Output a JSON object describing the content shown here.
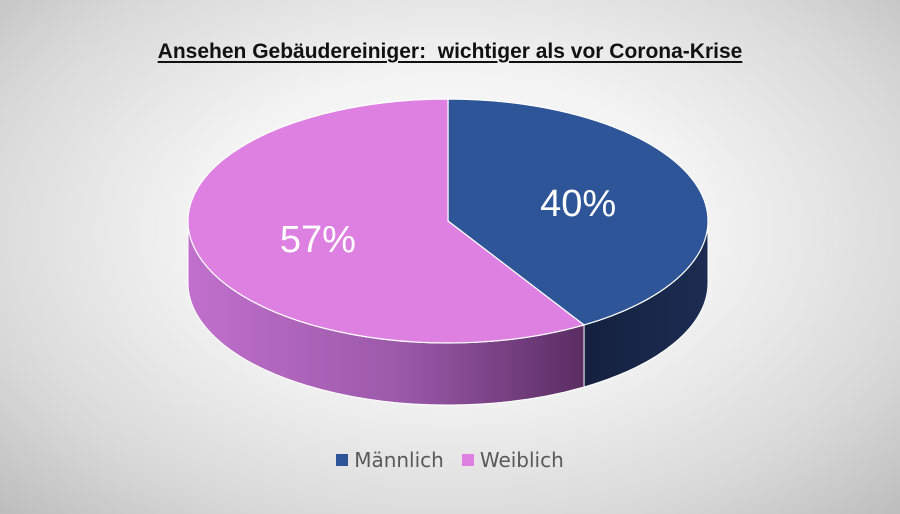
{
  "chart_data": {
    "type": "pie",
    "style": "3d",
    "title": "Ansehen Gebäudereiniger:  wichtiger als vor Corona-Krise",
    "slices": [
      {
        "name": "Männlich",
        "value": 40,
        "label": "40%",
        "color": "#2e5597",
        "side_color": "#15244a"
      },
      {
        "name": "Weiblich",
        "value": 57,
        "label": "57%",
        "color": "#dd80e2",
        "side_color": "#a85bb3"
      }
    ],
    "legend_position": "bottom"
  }
}
